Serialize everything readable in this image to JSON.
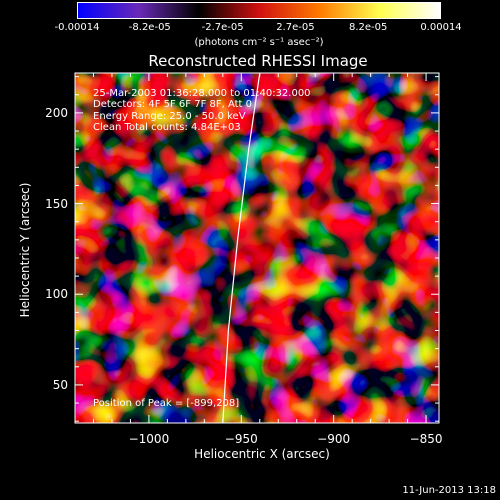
{
  "colorbar": {
    "tick_labels": [
      "-0.00014",
      "-8.2e-05",
      "-2.7e-05",
      "2.7e-05",
      "8.2e-05",
      "0.00014"
    ],
    "units": "(photons cm⁻² s⁻¹ asec⁻²)",
    "colors": [
      "#1010d0",
      "#6030b0",
      "#000000",
      "#c01010",
      "#ff8000",
      "#ffff60",
      "#ffffff"
    ]
  },
  "chart_data": {
    "type": "heatmap",
    "title": "Reconstructed RHESSI Image",
    "xlabel": "Heliocentric X (arcsec)",
    "ylabel": "Heliocentric Y (arcsec)",
    "xlim": [
      -1040,
      -843
    ],
    "ylim": [
      29,
      222
    ],
    "xticks": [
      -1000,
      -950,
      -900,
      -850
    ],
    "xtick_labels": [
      "−1000",
      "−950",
      "−900",
      "−850"
    ],
    "yticks": [
      50,
      100,
      150,
      200
    ],
    "ytick_labels": [
      "50",
      "100",
      "150",
      "200"
    ],
    "colorbar_range": [
      -0.00014,
      0.00014
    ],
    "limb_curve": [
      [
        -960,
        29
      ],
      [
        -957,
        80
      ],
      [
        -952,
        130
      ],
      [
        -946,
        180
      ],
      [
        -940,
        222
      ]
    ],
    "peak": {
      "x": -899,
      "y": 208
    },
    "annotations": [
      "25-Mar-2003 01:36:28.000 to 01:40:32.000",
      "Detectors: 4F 5F 6F 7F 8F, Att 0",
      "Energy Range: 25.0 - 50.0 keV",
      "Clean     Total counts: 4.84E+03"
    ],
    "peak_label": "Position of Peak = [-899,208]"
  },
  "footer": {
    "timestamp": "11-Jun-2013 13:18"
  }
}
